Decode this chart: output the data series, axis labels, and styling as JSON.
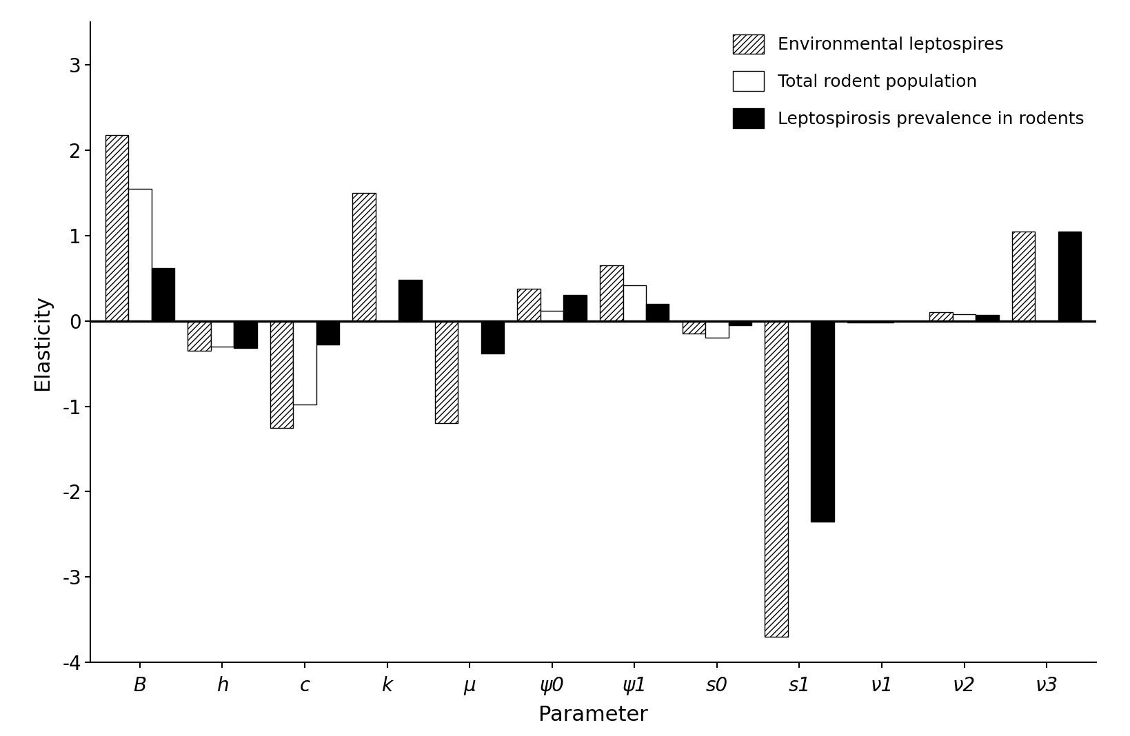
{
  "parameters": [
    "B",
    "h",
    "c",
    "k",
    "μ",
    "ψ0",
    "ψ1",
    "s0",
    "s1",
    "ν1",
    "ν2",
    "ν3"
  ],
  "env_leptospires": [
    2.18,
    -0.35,
    -1.25,
    1.5,
    -1.2,
    0.38,
    0.65,
    -0.15,
    -3.7,
    -0.02,
    0.1,
    1.05
  ],
  "total_rodent": [
    1.55,
    -0.3,
    -0.98,
    0.0,
    0.0,
    0.12,
    0.42,
    -0.2,
    0.0,
    -0.02,
    0.08,
    0.0
  ],
  "prevalence": [
    0.62,
    -0.32,
    -0.28,
    0.48,
    -0.38,
    0.3,
    0.2,
    -0.05,
    -2.35,
    0.0,
    0.07,
    1.05
  ],
  "ylabel": "Elasticity",
  "xlabel": "Parameter",
  "ylim": [
    -4,
    3.5
  ],
  "yticks": [
    -4,
    -3,
    -2,
    -1,
    0,
    1,
    2,
    3
  ],
  "legend_labels": [
    "Environmental leptospires",
    "Total rodent population",
    "Leptospirosis prevalence in rodents"
  ],
  "background_color": "#ffffff",
  "bar_width": 0.28,
  "figwidth": 16.39,
  "figheight": 10.68,
  "dpi": 100
}
